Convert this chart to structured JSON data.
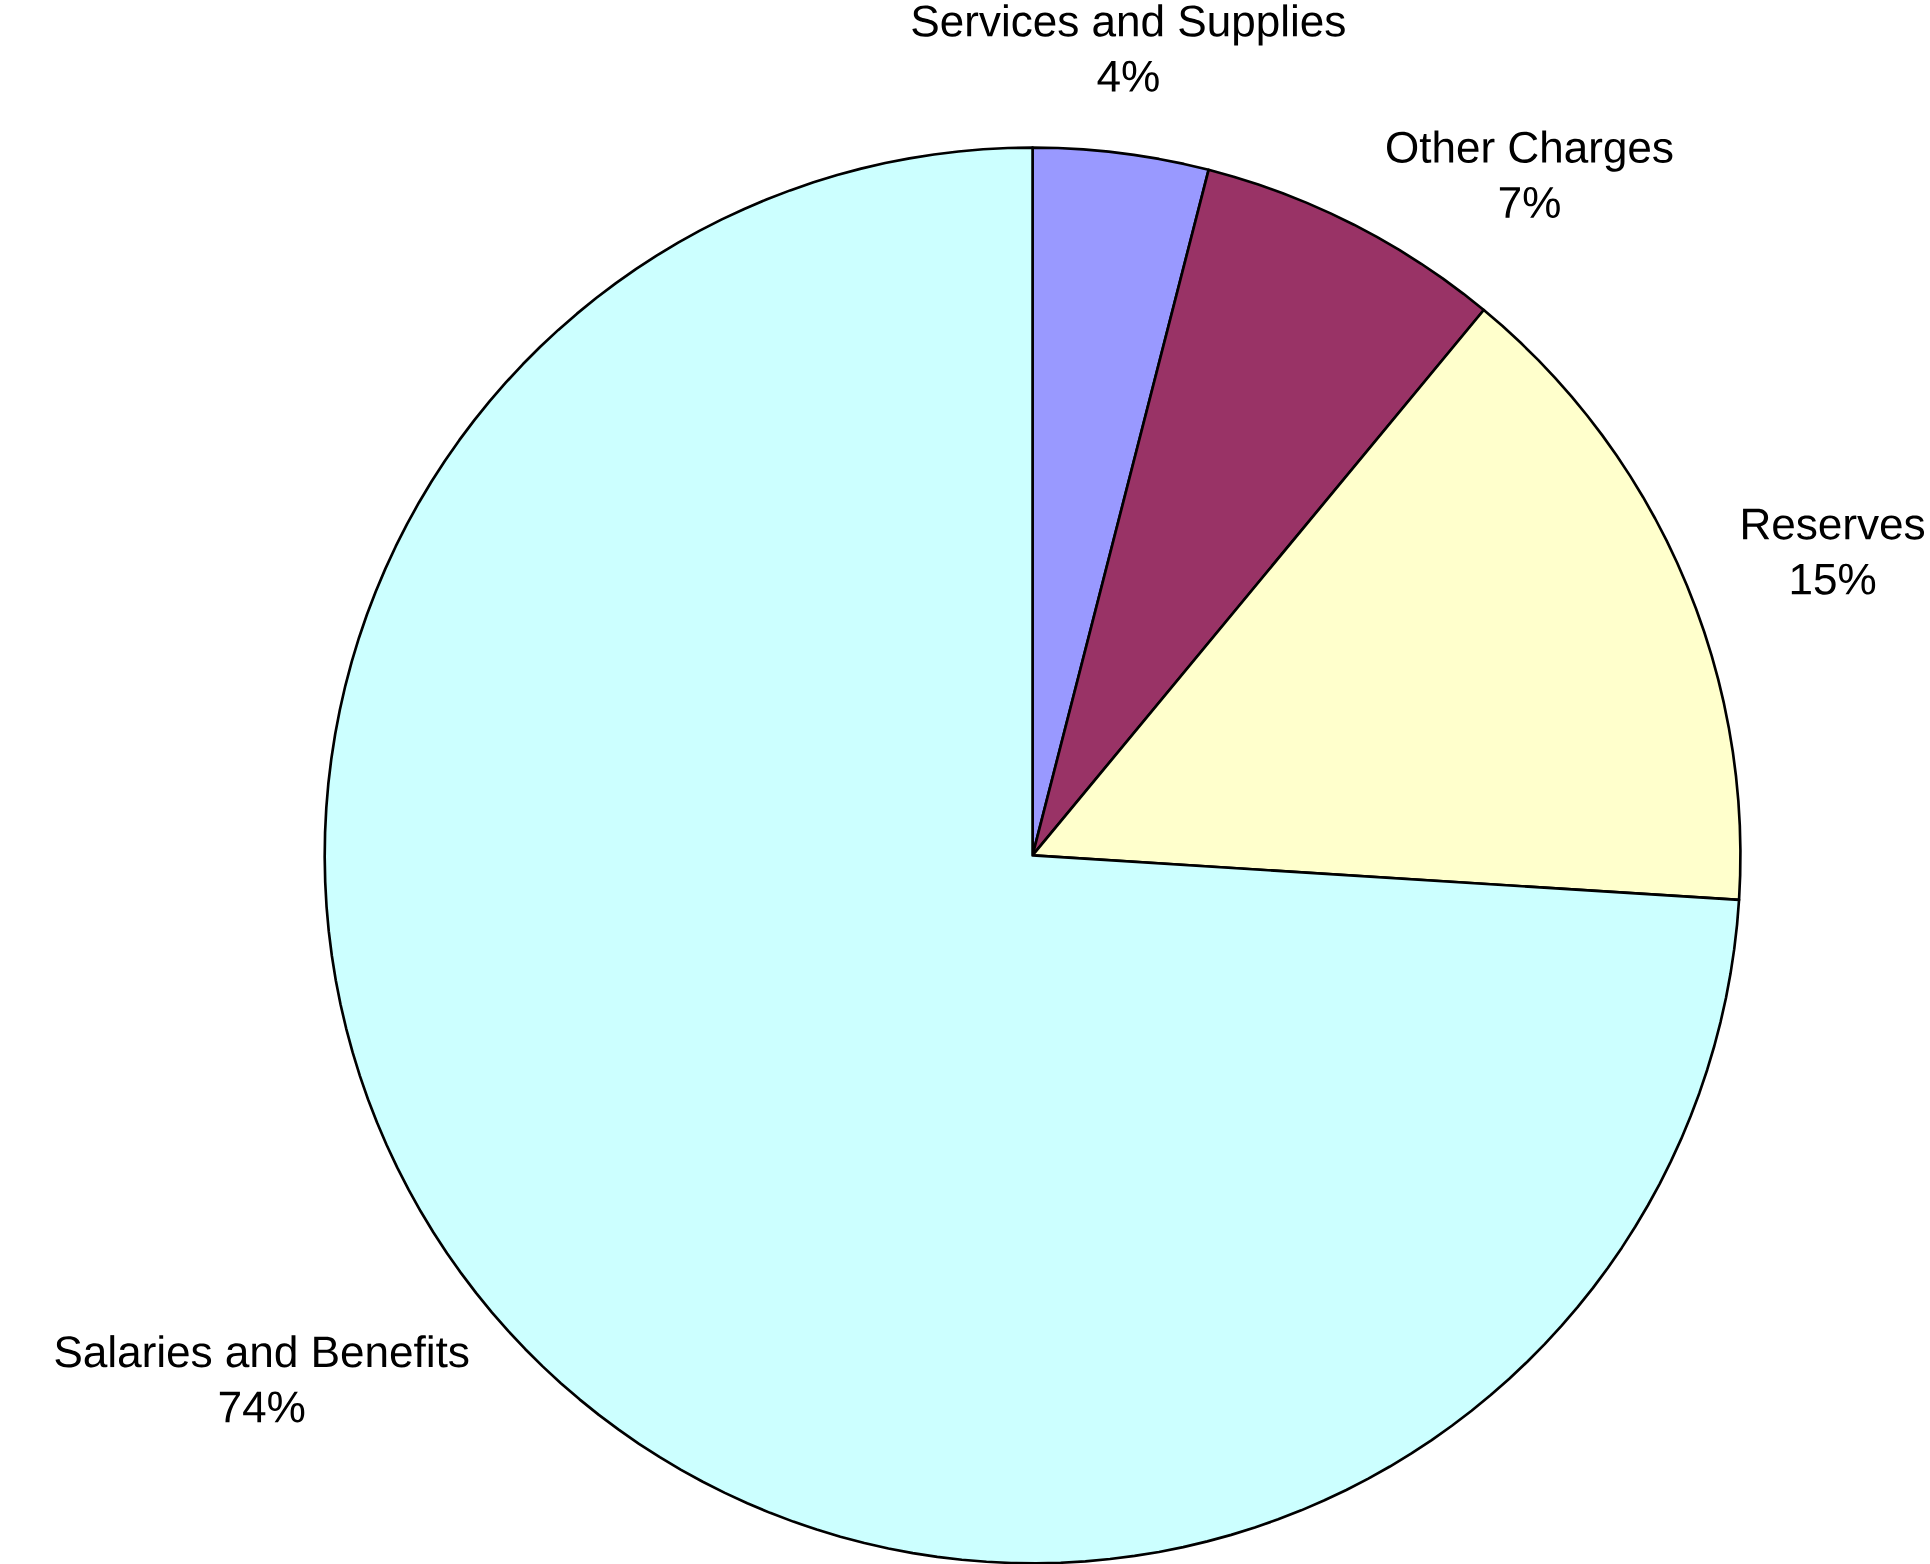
{
  "chart_data": {
    "type": "pie",
    "categories": [
      "Services and Supplies",
      "Other Charges",
      "Reserves",
      "Salaries and Benefits"
    ],
    "values": [
      4,
      7,
      15,
      74
    ],
    "value_labels": [
      "4%",
      "7%",
      "15%",
      "74%"
    ],
    "colors": [
      "#9999ff",
      "#993366",
      "#ffffcc",
      "#ccffff"
    ]
  }
}
